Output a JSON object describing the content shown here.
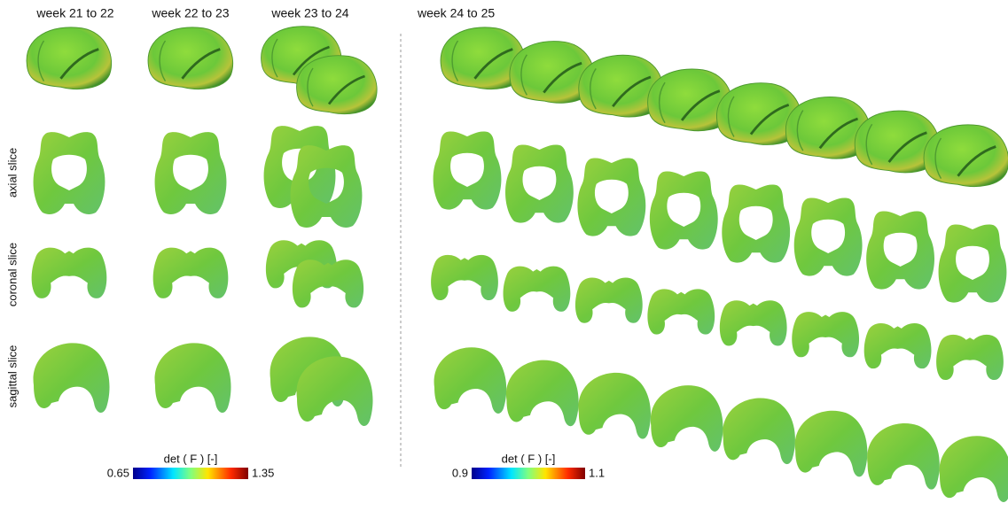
{
  "header": {
    "columns": [
      "week 21 to 22",
      "week 22 to 23",
      "week 23 to 24",
      "week 24 to 25"
    ]
  },
  "rows": [
    "axial slice",
    "coronal slice",
    "sagittal slice"
  ],
  "colorbars": [
    {
      "label": "det ( F ) [-]",
      "min": 0.65,
      "max": 1.35
    },
    {
      "label": "det ( F ) [-]",
      "min": 0.9,
      "max": 1.1
    }
  ]
}
